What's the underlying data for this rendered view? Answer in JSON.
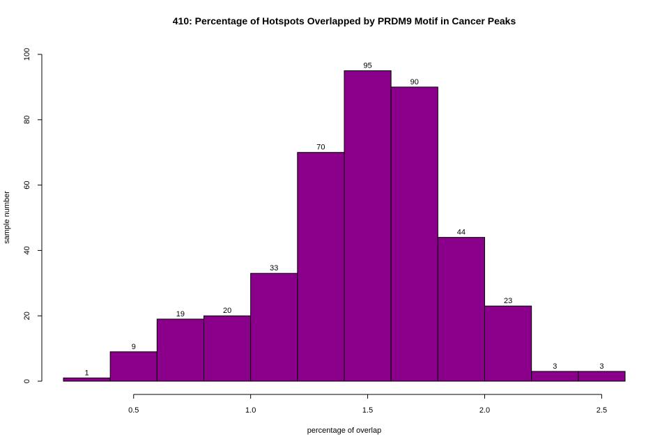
{
  "chart_data": {
    "type": "bar",
    "title": "410: Percentage of Hotspots Overlapped by PRDM9 Motif in Cancer Peaks",
    "xlabel": "percentage of overlap",
    "ylabel": "sample number",
    "bins": [
      {
        "x0": 0.2,
        "x1": 0.4,
        "count": 1
      },
      {
        "x0": 0.4,
        "x1": 0.6,
        "count": 9
      },
      {
        "x0": 0.6,
        "x1": 0.8,
        "count": 19
      },
      {
        "x0": 0.8,
        "x1": 1.0,
        "count": 20
      },
      {
        "x0": 1.0,
        "x1": 1.2,
        "count": 33
      },
      {
        "x0": 1.2,
        "x1": 1.4,
        "count": 70
      },
      {
        "x0": 1.4,
        "x1": 1.6,
        "count": 95
      },
      {
        "x0": 1.6,
        "x1": 1.8,
        "count": 90
      },
      {
        "x0": 1.8,
        "x1": 2.0,
        "count": 44
      },
      {
        "x0": 2.0,
        "x1": 2.2,
        "count": 23
      },
      {
        "x0": 2.2,
        "x1": 2.4,
        "count": 3
      },
      {
        "x0": 2.4,
        "x1": 2.6,
        "count": 3
      }
    ],
    "xticks": [
      "0.5",
      "1.0",
      "1.5",
      "2.0",
      "2.5"
    ],
    "yticks": [
      "0",
      "20",
      "40",
      "60",
      "80",
      "100"
    ],
    "xlim": [
      0.2,
      2.6
    ],
    "ylim": [
      0,
      100
    ],
    "bar_color": "#8B008B",
    "grid": false,
    "legend": "none"
  }
}
